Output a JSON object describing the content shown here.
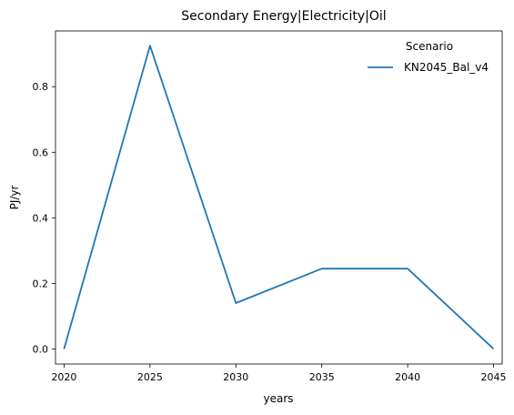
{
  "chart_data": {
    "type": "line",
    "title": "Secondary Energy|Electricity|Oil",
    "xlabel": "years",
    "ylabel": "PJ/yr",
    "x": [
      2020,
      2025,
      2030,
      2035,
      2040,
      2045
    ],
    "xticks": [
      "2020",
      "2025",
      "2030",
      "2035",
      "2040",
      "2045"
    ],
    "yticks": [
      "0.0",
      "0.2",
      "0.4",
      "0.6",
      "0.8"
    ],
    "xlim": [
      2019.5,
      2045.5
    ],
    "ylim": [
      -0.046,
      0.97
    ],
    "grid": false,
    "legend": {
      "title": "Scenario",
      "placement": "top-right"
    },
    "series": [
      {
        "name": "KN2045_Bal_v4",
        "color": "#1f77b4",
        "values": [
          0.0,
          0.925,
          0.14,
          0.245,
          0.245,
          0.0
        ]
      }
    ]
  }
}
